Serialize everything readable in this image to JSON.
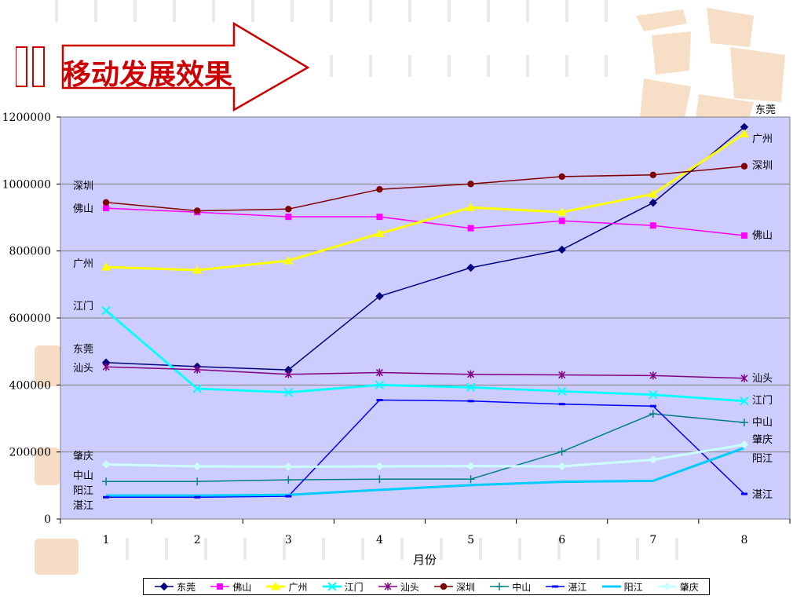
{
  "header": {
    "title": "移动发展效果"
  },
  "chart_data": {
    "type": "line",
    "title": "",
    "xlabel": "月份",
    "ylabel": "",
    "x": [
      1,
      2,
      3,
      4,
      5,
      6,
      7,
      8
    ],
    "xlim": [
      0.5,
      8.5
    ],
    "ylim": [
      0,
      1200000
    ],
    "yticks": [
      0,
      200000,
      400000,
      600000,
      800000,
      1000000,
      1200000
    ],
    "ytick_labels": [
      "0",
      "200000",
      "400000",
      "600000",
      "800000",
      "1000000",
      "1200000"
    ],
    "xtick_labels": [
      "1",
      "2",
      "3",
      "4",
      "5",
      "6",
      "7",
      "8"
    ],
    "grid": "horizontal",
    "plot_background": "#ccccff",
    "legend_position": "bottom",
    "series": [
      {
        "name": "东莞",
        "color": "#000080",
        "marker": "diamond",
        "values": [
          467000,
          455000,
          445000,
          665000,
          750000,
          804000,
          944000,
          1170000
        ]
      },
      {
        "name": "佛山",
        "color": "#ff00ff",
        "marker": "square",
        "values": [
          928000,
          916000,
          902000,
          902000,
          868000,
          890000,
          876000,
          846000
        ]
      },
      {
        "name": "广州",
        "color": "#ffff00",
        "marker": "triangle",
        "values": [
          752000,
          743000,
          771000,
          852000,
          930000,
          916000,
          970000,
          1150000
        ]
      },
      {
        "name": "江门",
        "color": "#00ffff",
        "marker": "x",
        "values": [
          622000,
          389000,
          378000,
          400000,
          393000,
          381000,
          371000,
          352000
        ]
      },
      {
        "name": "汕头",
        "color": "#800080",
        "marker": "star",
        "values": [
          454000,
          446000,
          432000,
          437000,
          432000,
          430000,
          428000,
          420000
        ]
      },
      {
        "name": "深圳",
        "color": "#800000",
        "marker": "circle",
        "values": [
          945000,
          920000,
          925000,
          984000,
          1000000,
          1022000,
          1027000,
          1053000
        ]
      },
      {
        "name": "中山",
        "color": "#008080",
        "marker": "plus",
        "values": [
          112000,
          112000,
          117000,
          119000,
          119000,
          201000,
          314000,
          288000
        ]
      },
      {
        "name": "湛江",
        "color": "#0000ff",
        "marker": "dash",
        "values": [
          65000,
          65000,
          68000,
          355000,
          352000,
          343000,
          337000,
          75000
        ]
      },
      {
        "name": "阳江",
        "color": "#00ccff",
        "marker": "none",
        "values": [
          70000,
          70000,
          72000,
          87000,
          101000,
          111000,
          114000,
          212000
        ]
      },
      {
        "name": "肇庆",
        "color": "#ccffff",
        "marker": "diamond",
        "values": [
          163000,
          157000,
          156000,
          157000,
          158000,
          157000,
          177000,
          222000
        ]
      }
    ],
    "left_labels": [
      {
        "text": "深圳",
        "series": "深圳"
      },
      {
        "text": "佛山",
        "series": "佛山"
      },
      {
        "text": "广州",
        "series": "广州"
      },
      {
        "text": "江门",
        "series": "江门"
      },
      {
        "text": "东莞",
        "series": "东莞"
      },
      {
        "text": "汕头",
        "series": "汕头"
      },
      {
        "text": "肇庆",
        "series": "肇庆"
      },
      {
        "text": "中山",
        "series": "中山"
      },
      {
        "text": "阳江",
        "series": "阳江"
      },
      {
        "text": "湛江",
        "series": "湛江"
      }
    ],
    "right_labels": [
      {
        "text": "东莞",
        "series": "东莞"
      },
      {
        "text": "广州",
        "series": "广州"
      },
      {
        "text": "深圳",
        "series": "深圳"
      },
      {
        "text": "佛山",
        "series": "佛山"
      },
      {
        "text": "汕头",
        "series": "汕头"
      },
      {
        "text": "江门",
        "series": "江门"
      },
      {
        "text": "中山",
        "series": "中山"
      },
      {
        "text": "肇庆",
        "series": "肇庆"
      },
      {
        "text": "阳江",
        "series": "阳江"
      },
      {
        "text": "湛江",
        "series": "湛江"
      }
    ]
  }
}
